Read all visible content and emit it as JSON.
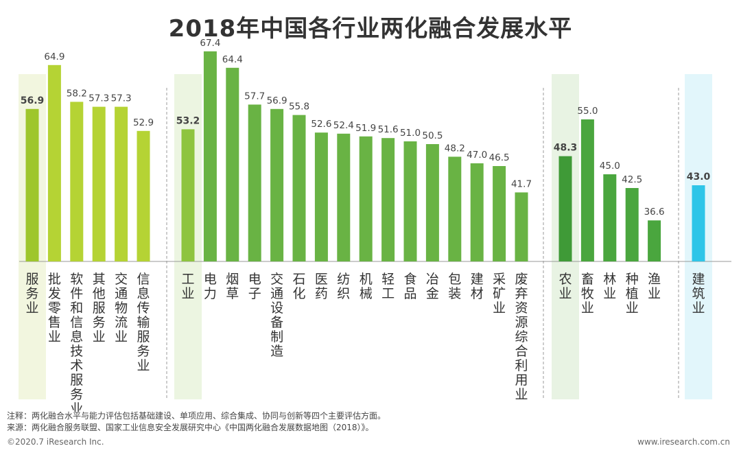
{
  "chart_data": {
    "type": "bar",
    "title": "2018年中国各行业两化融合发展水平",
    "groups": [
      {
        "name": "服务业",
        "color": "#b5d334",
        "highlight_color": "#9ec62c",
        "band_color": "#f2f6df",
        "categories": [
          "服务业",
          "批发零售业",
          "软件和信息技术服务业",
          "其他服务业",
          "交通物流业",
          "信息传输服务业"
        ],
        "values": [
          56.9,
          64.9,
          58.2,
          57.3,
          57.3,
          52.9
        ],
        "labels": [
          "56.9",
          "64.9",
          "58.2",
          "57.3",
          "57.3",
          "52.9"
        ]
      },
      {
        "name": "工业",
        "color": "#69b344",
        "highlight_color": "#8ec43f",
        "band_color": "#ecf5e1",
        "categories": [
          "工业",
          "电力",
          "烟草",
          "电子",
          "交通设备制造",
          "石化",
          "医药",
          "纺织",
          "机械",
          "轻工",
          "食品",
          "冶金",
          "包装",
          "建材",
          "采矿业",
          "废弃资源综合利用业"
        ],
        "values": [
          53.2,
          67.4,
          64.4,
          57.7,
          56.9,
          55.8,
          52.6,
          52.4,
          51.9,
          51.6,
          51.0,
          50.5,
          48.2,
          47.0,
          46.5,
          41.7
        ],
        "labels": [
          "53.2",
          "67.4",
          "64.4",
          "57.7",
          "56.9",
          "55.8",
          "52.6",
          "52.4",
          "51.9",
          "51.6",
          "51.0",
          "50.5",
          "48.2",
          "47.0",
          "46.5",
          "41.7"
        ]
      },
      {
        "name": "农业",
        "color": "#4aa63e",
        "highlight_color": "#3f9a37",
        "band_color": "#e8f3e3",
        "categories": [
          "农业",
          "畜牧业",
          "林业",
          "种植业",
          "渔业"
        ],
        "values": [
          48.3,
          55.0,
          45.0,
          42.5,
          36.6
        ],
        "labels": [
          "48.3",
          "55.0",
          "45.0",
          "42.5",
          "36.6"
        ]
      },
      {
        "name": "建筑业",
        "color": "#2ec5e8",
        "highlight_color": "#2ec5e8",
        "band_color": "#e2f6fb",
        "categories": [
          "建筑业"
        ],
        "values": [
          43.0
        ],
        "labels": [
          "43.0"
        ]
      }
    ]
  },
  "footnotes": {
    "note": "注释：两化融合水平与能力评估包括基础建设、单项应用、综合集成、协同与创新等四个主要评估方面。",
    "source": "来源：两化融合服务联盟、国家工业信息安全发展研究中心《中国两化融合发展数据地图（2018）》。"
  },
  "footer": {
    "copyright": "©2020.7 iResearch Inc.",
    "website": "www.iresearch.com.cn"
  }
}
